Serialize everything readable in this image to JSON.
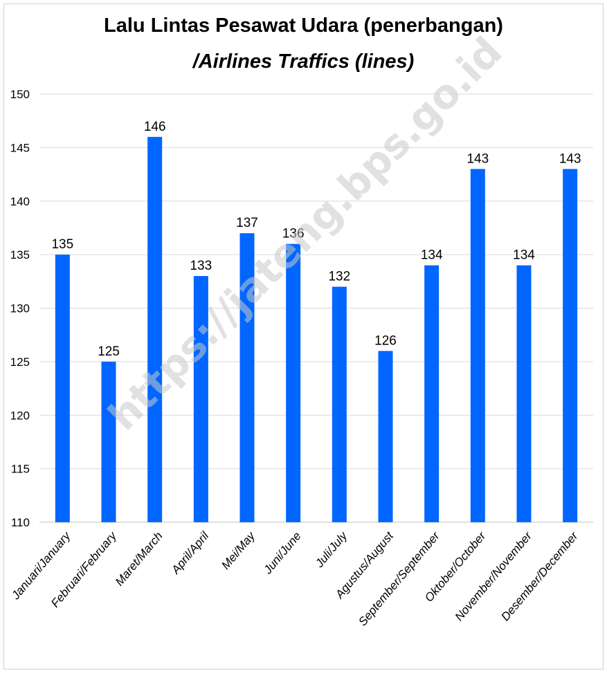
{
  "chart_data": {
    "type": "bar",
    "title": "Lalu Lintas Pesawat Udara (penerbangan)",
    "subtitle": "/Airlines Traffics (lines)",
    "categories": [
      "Januari/January",
      "Februari/February",
      "Maret/March",
      "April/April",
      "Mei/May",
      "Juni/June",
      "Juli/July",
      "Agustus/August",
      "September/September",
      "Oktober/October",
      "November/November",
      "Desember/December"
    ],
    "values": [
      135,
      125,
      146,
      133,
      137,
      136,
      132,
      126,
      134,
      143,
      134,
      143
    ],
    "ylim": [
      110,
      150
    ],
    "yticks": [
      110,
      115,
      120,
      125,
      130,
      135,
      140,
      145,
      150
    ],
    "grid": true,
    "legend": "none",
    "bar_color": "#0066ff",
    "watermark": "https://jateng.bps.go.id"
  }
}
